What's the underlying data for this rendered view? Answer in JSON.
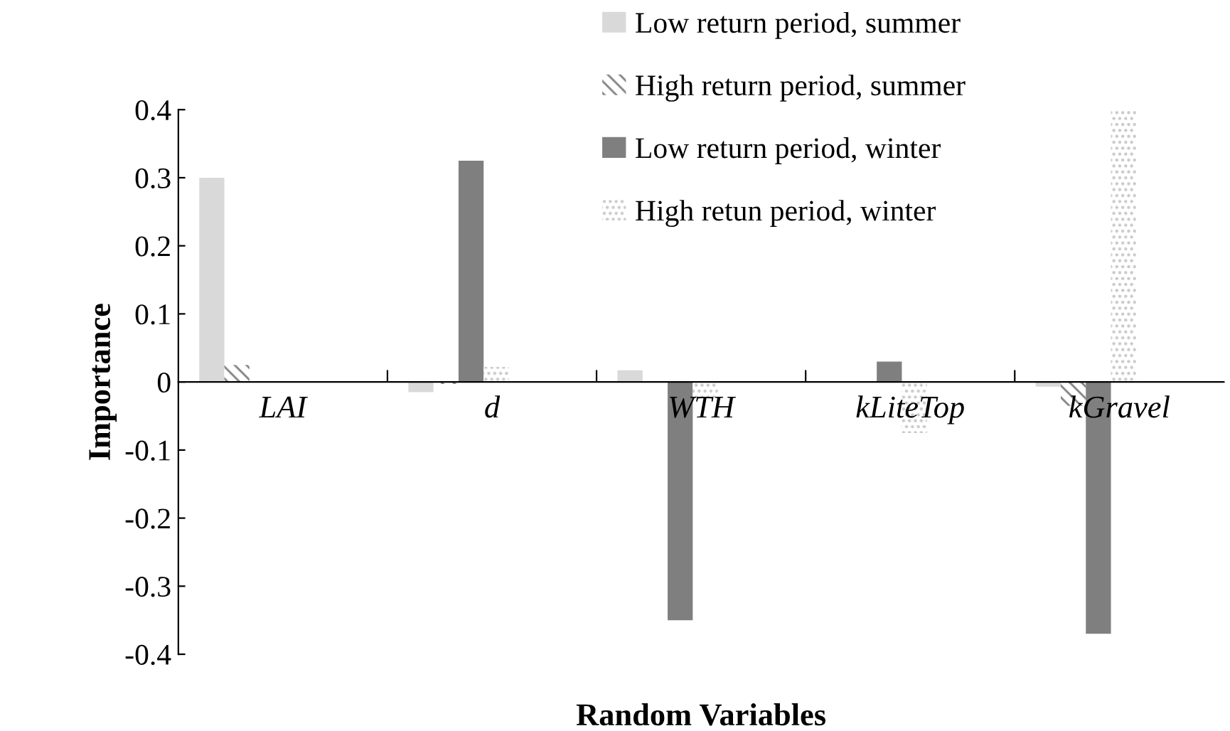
{
  "chart_data": {
    "type": "bar",
    "xlabel": "Random Variables",
    "ylabel": "Importance",
    "categories": [
      "LAI",
      "d",
      "WTH",
      "kLiteTop",
      "kGravel"
    ],
    "series": [
      {
        "name": "Low return period, summer",
        "color": "#d9d9d9",
        "values": [
          0.3,
          -0.015,
          0.017,
          0,
          -0.007
        ]
      },
      {
        "name": "High return period, summer",
        "color": "#808080",
        "values": [
          0.025,
          -0.003,
          0,
          0,
          -0.035
        ]
      },
      {
        "name": "Low return period, winter",
        "color": "#7f7f7f",
        "values": [
          0,
          0.325,
          -0.35,
          0.03,
          -0.37
        ]
      },
      {
        "name": "High retun period, winter",
        "color": "#c8c8c8",
        "values": [
          0,
          0.022,
          -0.022,
          -0.075,
          0.4
        ]
      }
    ],
    "ylim": [
      -0.4,
      0.4
    ],
    "yticks": [
      -0.4,
      -0.3,
      -0.2,
      -0.1,
      0,
      0.1,
      0.2,
      0.3,
      0.4
    ],
    "grid": false,
    "legend": "top right"
  }
}
